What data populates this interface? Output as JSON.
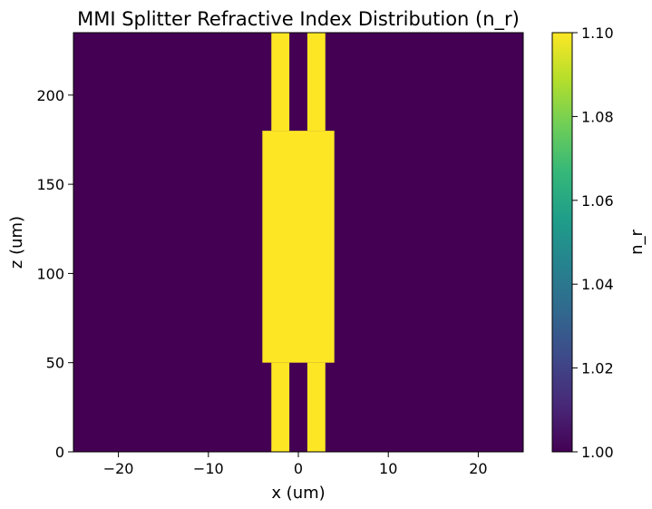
{
  "chart_data": {
    "type": "heatmap",
    "title": "MMI Splitter Refractive Index Distribution (n_r)",
    "xlabel": "x (um)",
    "ylabel": "z (um)",
    "xlim": [
      -25,
      25
    ],
    "ylim": [
      0,
      235
    ],
    "xticks": [
      -20,
      -10,
      0,
      10,
      20
    ],
    "xtick_labels": [
      "−20",
      "−10",
      "0",
      "10",
      "20"
    ],
    "yticks": [
      0,
      50,
      100,
      150,
      200
    ],
    "ytick_labels": [
      "0",
      "50",
      "100",
      "150",
      "200"
    ],
    "background_value": 1.0,
    "regions": [
      {
        "name": "input-waveguide-left",
        "x": [
          -3,
          -1
        ],
        "z": [
          0,
          50
        ],
        "value": 1.1
      },
      {
        "name": "input-waveguide-right",
        "x": [
          1,
          3
        ],
        "z": [
          0,
          50
        ],
        "value": 1.1
      },
      {
        "name": "mmi-section",
        "x": [
          -4,
          4
        ],
        "z": [
          50,
          180
        ],
        "value": 1.1
      },
      {
        "name": "output-waveguide-left",
        "x": [
          -3,
          -1
        ],
        "z": [
          180,
          235
        ],
        "value": 1.1
      },
      {
        "name": "output-waveguide-right",
        "x": [
          1,
          3
        ],
        "z": [
          180,
          235
        ],
        "value": 1.1
      }
    ],
    "colorbar": {
      "label": "n_r",
      "range": [
        1.0,
        1.1
      ],
      "ticks": [
        1.0,
        1.02,
        1.04,
        1.06,
        1.08,
        1.1
      ],
      "tick_labels": [
        "1.00",
        "1.02",
        "1.04",
        "1.06",
        "1.08",
        "1.10"
      ],
      "colormap": "viridis",
      "colormap_stops": [
        "#440154",
        "#482878",
        "#3e4989",
        "#31688e",
        "#26828e",
        "#1f9e89",
        "#35b779",
        "#6ece58",
        "#b5de2b",
        "#fde725"
      ]
    },
    "grid": false
  }
}
